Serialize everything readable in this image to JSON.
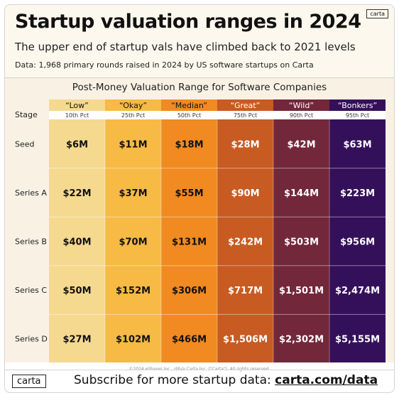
{
  "header": {
    "title": "Startup valuation ranges in 2024",
    "subtitle": "The upper end of startup vals have climbed back to 2021 levels",
    "data_note": "Data: 1,968 primary rounds raised in 2024 by US software startups on Carta",
    "logo_text": "carta"
  },
  "footer": {
    "logo_text": "carta",
    "subscribe_text": "Subscribe for more startup data: ",
    "link_text": "carta.com/data",
    "copyright": "©2024 eShares Inc., d/b/a Carta Inc. (\"Carta\"). All rights reserved."
  },
  "chart_data": {
    "type": "table",
    "title": "Post-Money Valuation Range for Software Companies",
    "row_header": "Stage",
    "columns": [
      {
        "label": "“Low”",
        "pct": "10th Pct",
        "color": "#f5d98f",
        "text_color": "#111111"
      },
      {
        "label": "“Okay”",
        "pct": "25th Pct",
        "color": "#f6ba45",
        "text_color": "#111111"
      },
      {
        "label": "“Median”",
        "pct": "50th Pct",
        "color": "#f08a21",
        "text_color": "#111111"
      },
      {
        "label": "“Great”",
        "pct": "75th Pct",
        "color": "#c75b22",
        "text_color": "#ffffff"
      },
      {
        "label": "“Wild”",
        "pct": "90th Pct",
        "color": "#73273a",
        "text_color": "#ffffff"
      },
      {
        "label": "“Bonkers”",
        "pct": "95th Pct",
        "color": "#35105a",
        "text_color": "#ffffff"
      }
    ],
    "rows": [
      {
        "stage": "Seed",
        "values": [
          "$6M",
          "$11M",
          "$18M",
          "$28M",
          "$42M",
          "$63M"
        ]
      },
      {
        "stage": "Series A",
        "values": [
          "$22M",
          "$37M",
          "$55M",
          "$90M",
          "$144M",
          "$223M"
        ]
      },
      {
        "stage": "Series B",
        "values": [
          "$40M",
          "$70M",
          "$131M",
          "$242M",
          "$503M",
          "$956M"
        ]
      },
      {
        "stage": "Series C",
        "values": [
          "$50M",
          "$152M",
          "$306M",
          "$717M",
          "$1,501M",
          "$2,474M"
        ]
      },
      {
        "stage": "Series D",
        "values": [
          "$27M",
          "$102M",
          "$466M",
          "$1,506M",
          "$2,302M",
          "$5,155M"
        ]
      }
    ]
  }
}
